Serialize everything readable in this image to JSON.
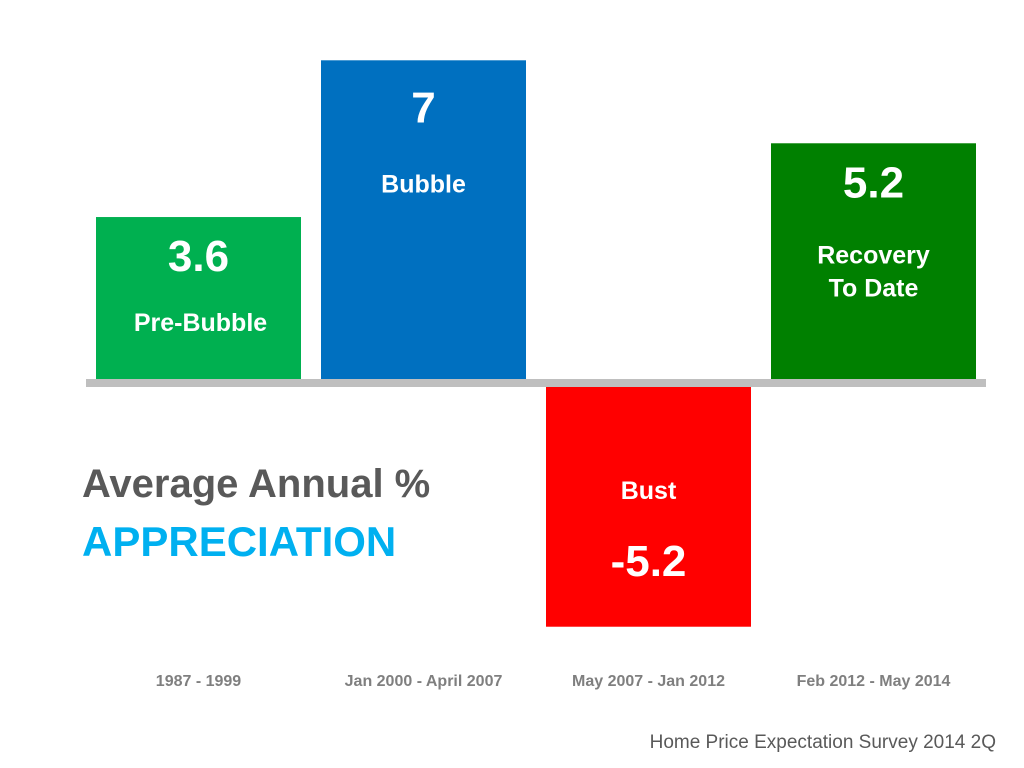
{
  "chart_data": {
    "type": "bar",
    "title": "Average Annual % APPRECIATION",
    "title_line1": "Average Annual %",
    "title_line2": "APPRECIATION",
    "categories": [
      "1987 - 1999",
      "Jan 2000 - April 2007",
      "May 2007 - Jan 2012",
      "Feb 2012 - May 2014"
    ],
    "values": [
      3.6,
      7,
      -5.2,
      5.2
    ],
    "value_labels": [
      "3.6",
      "7",
      "-5.2",
      "5.2"
    ],
    "bar_names": [
      "Pre-Bubble",
      "Bubble",
      "Bust",
      "Recovery To Date"
    ],
    "bar_name_lines": [
      [
        "Pre-Bubble"
      ],
      [
        "Bubble"
      ],
      [
        "Bust"
      ],
      [
        "Recovery",
        "To Date"
      ]
    ],
    "colors": [
      "#00b050",
      "#0070c0",
      "#ff0000",
      "#008000"
    ],
    "xlabel": "",
    "ylabel": "",
    "ylim": [
      -5.2,
      7
    ],
    "grid": false,
    "source": "Home Price Expectation Survey 2014 2Q"
  }
}
